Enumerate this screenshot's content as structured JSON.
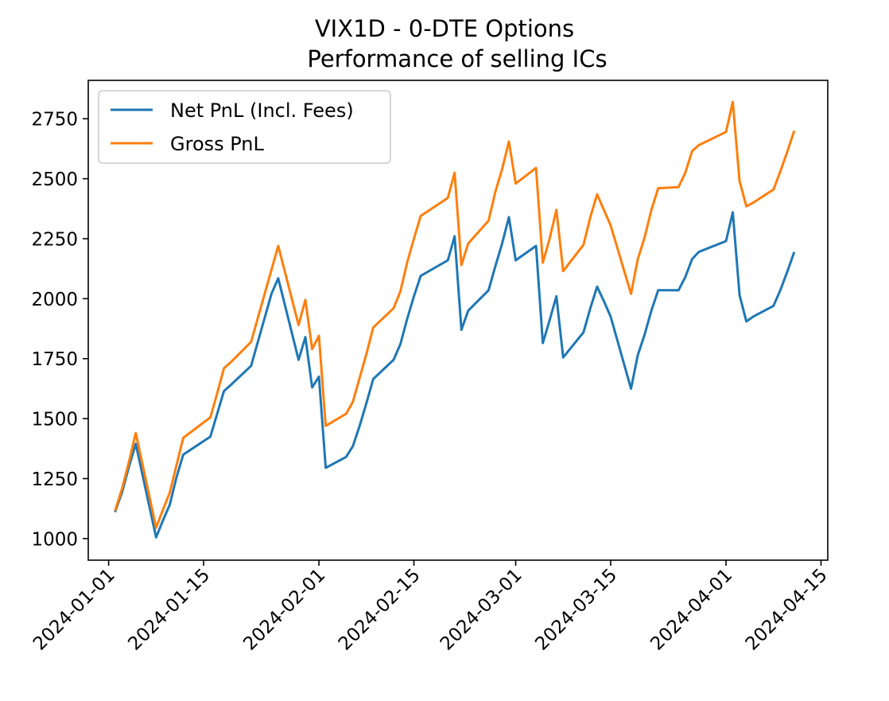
{
  "chart_data": {
    "type": "line",
    "title": "VIX1D - 0-DTE Options",
    "subtitle": "Performance of selling ICs",
    "xlabel": "",
    "ylabel": "",
    "x_axis_type": "date",
    "xlim": [
      "2023-12-29",
      "2024-04-16"
    ],
    "ylim": [
      910,
      2910
    ],
    "x_ticks": [
      "2024-01-01",
      "2024-01-15",
      "2024-02-01",
      "2024-02-15",
      "2024-03-01",
      "2024-03-15",
      "2024-04-01",
      "2024-04-15"
    ],
    "y_ticks": [
      1000,
      1250,
      1500,
      1750,
      2000,
      2250,
      2500,
      2750
    ],
    "grid": false,
    "legend": {
      "position": "top-left"
    },
    "series": [
      {
        "name": "Net PnL (Incl. Fees)",
        "color": "#1f77b4",
        "x": [
          "2024-01-02",
          "2024-01-03",
          "2024-01-04",
          "2024-01-05",
          "2024-01-08",
          "2024-01-09",
          "2024-01-10",
          "2024-01-11",
          "2024-01-12",
          "2024-01-16",
          "2024-01-17",
          "2024-01-18",
          "2024-01-19",
          "2024-01-22",
          "2024-01-23",
          "2024-01-24",
          "2024-01-25",
          "2024-01-26",
          "2024-01-29",
          "2024-01-30",
          "2024-01-31",
          "2024-02-01",
          "2024-02-02",
          "2024-02-05",
          "2024-02-06",
          "2024-02-07",
          "2024-02-08",
          "2024-02-09",
          "2024-02-12",
          "2024-02-13",
          "2024-02-14",
          "2024-02-15",
          "2024-02-16",
          "2024-02-20",
          "2024-02-21",
          "2024-02-22",
          "2024-02-23",
          "2024-02-26",
          "2024-02-27",
          "2024-02-28",
          "2024-02-29",
          "2024-03-01",
          "2024-03-04",
          "2024-03-05",
          "2024-03-06",
          "2024-03-07",
          "2024-03-08",
          "2024-03-11",
          "2024-03-12",
          "2024-03-13",
          "2024-03-14",
          "2024-03-15",
          "2024-03-18",
          "2024-03-19",
          "2024-03-20",
          "2024-03-21",
          "2024-03-22",
          "2024-03-25",
          "2024-03-26",
          "2024-03-27",
          "2024-03-28",
          "2024-04-01",
          "2024-04-02",
          "2024-04-03",
          "2024-04-04",
          "2024-04-05",
          "2024-04-08",
          "2024-04-09",
          "2024-04-10",
          "2024-04-11"
        ],
        "values": [
          1115,
          1195,
          1300,
          1395,
          1005,
          1075,
          1140,
          1255,
          1350,
          1425,
          1520,
          1615,
          1640,
          1720,
          1820,
          1920,
          2020,
          2085,
          1745,
          1840,
          1630,
          1675,
          1295,
          1340,
          1385,
          1470,
          1565,
          1665,
          1745,
          1810,
          1915,
          2010,
          2095,
          2160,
          2260,
          1870,
          1950,
          2035,
          2135,
          2230,
          2340,
          2160,
          2220,
          1815,
          1910,
          2010,
          1755,
          1860,
          1960,
          2050,
          1990,
          1925,
          1625,
          1765,
          1850,
          1950,
          2035,
          2035,
          2090,
          2165,
          2195,
          2240,
          2360,
          2015,
          1905,
          1925,
          1970,
          2035,
          2110,
          2190
        ]
      },
      {
        "name": "Gross PnL",
        "color": "#ff7f0e",
        "x": [
          "2024-01-02",
          "2024-01-03",
          "2024-01-04",
          "2024-01-05",
          "2024-01-08",
          "2024-01-09",
          "2024-01-10",
          "2024-01-11",
          "2024-01-12",
          "2024-01-16",
          "2024-01-17",
          "2024-01-18",
          "2024-01-19",
          "2024-01-22",
          "2024-01-23",
          "2024-01-24",
          "2024-01-25",
          "2024-01-26",
          "2024-01-29",
          "2024-01-30",
          "2024-01-31",
          "2024-02-01",
          "2024-02-02",
          "2024-02-05",
          "2024-02-06",
          "2024-02-07",
          "2024-02-08",
          "2024-02-09",
          "2024-02-12",
          "2024-02-13",
          "2024-02-14",
          "2024-02-15",
          "2024-02-16",
          "2024-02-20",
          "2024-02-21",
          "2024-02-22",
          "2024-02-23",
          "2024-02-26",
          "2024-02-27",
          "2024-02-28",
          "2024-02-29",
          "2024-03-01",
          "2024-03-04",
          "2024-03-05",
          "2024-03-06",
          "2024-03-07",
          "2024-03-08",
          "2024-03-11",
          "2024-03-12",
          "2024-03-13",
          "2024-03-14",
          "2024-03-15",
          "2024-03-18",
          "2024-03-19",
          "2024-03-20",
          "2024-03-21",
          "2024-03-22",
          "2024-03-25",
          "2024-03-26",
          "2024-03-27",
          "2024-03-28",
          "2024-04-01",
          "2024-04-02",
          "2024-04-03",
          "2024-04-04",
          "2024-04-05",
          "2024-04-08",
          "2024-04-09",
          "2024-04-10",
          "2024-04-11"
        ],
        "values": [
          1120,
          1210,
          1320,
          1440,
          1045,
          1120,
          1190,
          1305,
          1420,
          1505,
          1605,
          1710,
          1735,
          1820,
          1920,
          2020,
          2120,
          2220,
          1890,
          1995,
          1790,
          1845,
          1470,
          1520,
          1570,
          1670,
          1770,
          1880,
          1960,
          2030,
          2150,
          2250,
          2345,
          2420,
          2525,
          2140,
          2230,
          2325,
          2445,
          2540,
          2655,
          2480,
          2545,
          2150,
          2250,
          2370,
          2115,
          2225,
          2340,
          2435,
          2370,
          2305,
          2020,
          2165,
          2255,
          2370,
          2460,
          2465,
          2525,
          2615,
          2640,
          2695,
          2820,
          2490,
          2385,
          2400,
          2455,
          2530,
          2610,
          2695
        ]
      }
    ]
  }
}
